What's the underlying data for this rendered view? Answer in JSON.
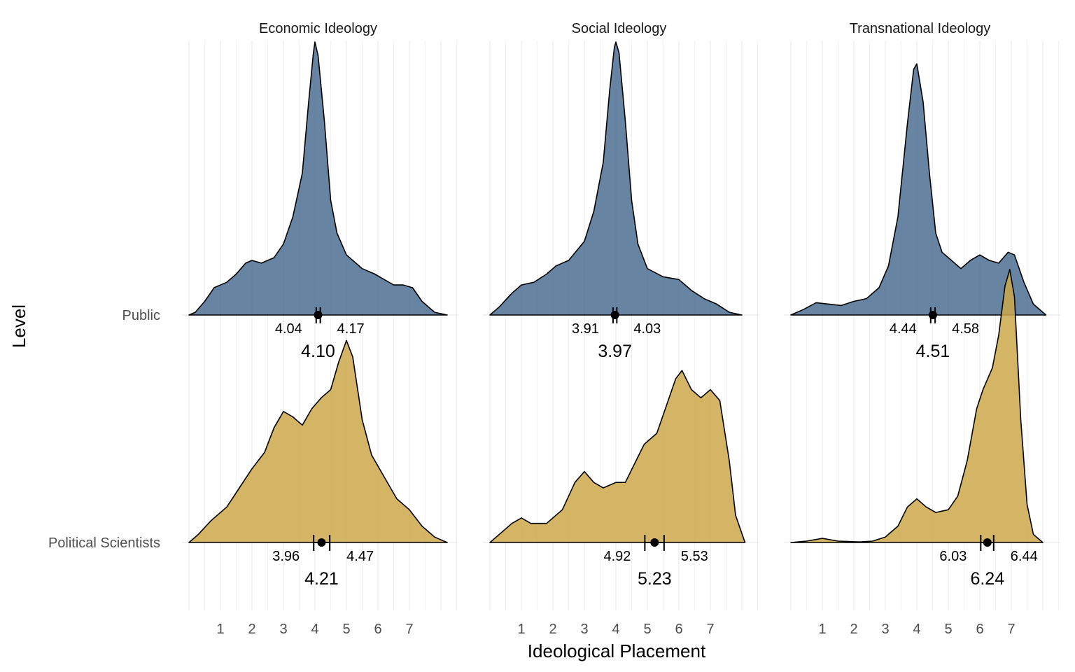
{
  "chart_data": {
    "type": "ridgeline-density",
    "xlabel": "Ideological Placement",
    "ylabel": "Level",
    "x_ticks": [
      "1",
      "2",
      "3",
      "4",
      "5",
      "6",
      "7"
    ],
    "xlim": [
      0,
      8.5
    ],
    "levels": [
      "Public",
      "Political Scientists"
    ],
    "colors": {
      "Public": "#4e6f93",
      "Political Scientists": "#cca84a"
    },
    "panels": [
      {
        "title": "Economic Ideology",
        "series": [
          {
            "level": "Public",
            "mean": 4.1,
            "ci_low": 4.04,
            "ci_high": 4.17,
            "mean_label": "4.10",
            "ci_low_label": "4.04",
            "ci_high_label": "4.17",
            "density": [
              [
                0,
                0
              ],
              [
                0.2,
                0.01
              ],
              [
                0.5,
                0.05
              ],
              [
                0.8,
                0.1
              ],
              [
                1.2,
                0.12
              ],
              [
                1.5,
                0.15
              ],
              [
                1.8,
                0.19
              ],
              [
                2.0,
                0.2
              ],
              [
                2.3,
                0.19
              ],
              [
                2.7,
                0.21
              ],
              [
                3.0,
                0.26
              ],
              [
                3.3,
                0.36
              ],
              [
                3.6,
                0.52
              ],
              [
                3.8,
                0.78
              ],
              [
                3.95,
                0.96
              ],
              [
                4.0,
                1.0
              ],
              [
                4.1,
                0.95
              ],
              [
                4.3,
                0.71
              ],
              [
                4.5,
                0.42
              ],
              [
                4.7,
                0.3
              ],
              [
                5.0,
                0.22
              ],
              [
                5.5,
                0.17
              ],
              [
                5.9,
                0.15
              ],
              [
                6.2,
                0.13
              ],
              [
                6.5,
                0.11
              ],
              [
                6.8,
                0.11
              ],
              [
                7.1,
                0.1
              ],
              [
                7.4,
                0.05
              ],
              [
                7.8,
                0.01
              ],
              [
                8.2,
                0
              ]
            ]
          },
          {
            "level": "Political Scientists",
            "mean": 4.21,
            "ci_low": 3.96,
            "ci_high": 4.47,
            "mean_label": "4.21",
            "ci_low_label": "3.96",
            "ci_high_label": "4.47",
            "density": [
              [
                0,
                0
              ],
              [
                0.3,
                0.03
              ],
              [
                0.7,
                0.08
              ],
              [
                1.2,
                0.13
              ],
              [
                1.6,
                0.2
              ],
              [
                2.0,
                0.27
              ],
              [
                2.4,
                0.33
              ],
              [
                2.7,
                0.42
              ],
              [
                3.0,
                0.48
              ],
              [
                3.3,
                0.46
              ],
              [
                3.6,
                0.43
              ],
              [
                3.9,
                0.49
              ],
              [
                4.2,
                0.53
              ],
              [
                4.5,
                0.56
              ],
              [
                4.75,
                0.66
              ],
              [
                5.0,
                0.74
              ],
              [
                5.2,
                0.68
              ],
              [
                5.5,
                0.45
              ],
              [
                5.8,
                0.32
              ],
              [
                6.2,
                0.24
              ],
              [
                6.6,
                0.16
              ],
              [
                7.0,
                0.12
              ],
              [
                7.4,
                0.06
              ],
              [
                7.8,
                0.02
              ],
              [
                8.2,
                0
              ]
            ]
          }
        ]
      },
      {
        "title": "Social Ideology",
        "series": [
          {
            "level": "Public",
            "mean": 3.97,
            "ci_low": 3.91,
            "ci_high": 4.03,
            "mean_label": "3.97",
            "ci_low_label": "3.91",
            "ci_high_label": "4.03",
            "density": [
              [
                0,
                0
              ],
              [
                0.3,
                0.03
              ],
              [
                0.7,
                0.08
              ],
              [
                1.0,
                0.11
              ],
              [
                1.4,
                0.12
              ],
              [
                1.8,
                0.15
              ],
              [
                2.1,
                0.18
              ],
              [
                2.5,
                0.2
              ],
              [
                3.0,
                0.27
              ],
              [
                3.3,
                0.38
              ],
              [
                3.6,
                0.56
              ],
              [
                3.8,
                0.82
              ],
              [
                3.95,
                0.98
              ],
              [
                4.0,
                1.0
              ],
              [
                4.1,
                0.96
              ],
              [
                4.3,
                0.71
              ],
              [
                4.5,
                0.42
              ],
              [
                4.7,
                0.26
              ],
              [
                5.0,
                0.17
              ],
              [
                5.5,
                0.14
              ],
              [
                6.0,
                0.13
              ],
              [
                6.4,
                0.09
              ],
              [
                6.8,
                0.06
              ],
              [
                7.2,
                0.04
              ],
              [
                7.6,
                0.01
              ],
              [
                8.0,
                0
              ]
            ]
          },
          {
            "level": "Political Scientists",
            "mean": 5.23,
            "ci_low": 4.92,
            "ci_high": 5.53,
            "mean_label": "5.23",
            "ci_low_label": "4.92",
            "ci_high_label": "5.53",
            "density": [
              [
                0,
                0
              ],
              [
                0.3,
                0.03
              ],
              [
                0.7,
                0.07
              ],
              [
                1.0,
                0.09
              ],
              [
                1.3,
                0.07
              ],
              [
                1.8,
                0.07
              ],
              [
                2.3,
                0.12
              ],
              [
                2.7,
                0.22
              ],
              [
                3.0,
                0.26
              ],
              [
                3.3,
                0.22
              ],
              [
                3.6,
                0.2
              ],
              [
                4.0,
                0.22
              ],
              [
                4.3,
                0.22
              ],
              [
                4.6,
                0.29
              ],
              [
                4.9,
                0.36
              ],
              [
                5.3,
                0.4
              ],
              [
                5.6,
                0.5
              ],
              [
                5.9,
                0.6
              ],
              [
                6.1,
                0.63
              ],
              [
                6.4,
                0.56
              ],
              [
                6.7,
                0.53
              ],
              [
                7.0,
                0.56
              ],
              [
                7.3,
                0.52
              ],
              [
                7.6,
                0.3
              ],
              [
                7.8,
                0.1
              ],
              [
                8.1,
                0
              ]
            ]
          }
        ]
      },
      {
        "title": "Transnational Ideology",
        "series": [
          {
            "level": "Public",
            "mean": 4.51,
            "ci_low": 4.44,
            "ci_high": 4.58,
            "mean_label": "4.51",
            "ci_low_label": "4.44",
            "ci_high_label": "4.58",
            "density": [
              [
                0,
                0
              ],
              [
                0.4,
                0.02
              ],
              [
                0.8,
                0.045
              ],
              [
                1.2,
                0.04
              ],
              [
                1.6,
                0.035
              ],
              [
                2.0,
                0.05
              ],
              [
                2.4,
                0.06
              ],
              [
                2.8,
                0.1
              ],
              [
                3.1,
                0.18
              ],
              [
                3.4,
                0.36
              ],
              [
                3.7,
                0.7
              ],
              [
                3.9,
                0.9
              ],
              [
                4.0,
                0.92
              ],
              [
                4.2,
                0.78
              ],
              [
                4.4,
                0.52
              ],
              [
                4.6,
                0.3
              ],
              [
                4.8,
                0.23
              ],
              [
                5.1,
                0.2
              ],
              [
                5.4,
                0.17
              ],
              [
                5.7,
                0.2
              ],
              [
                6.0,
                0.22
              ],
              [
                6.3,
                0.2
              ],
              [
                6.6,
                0.19
              ],
              [
                6.9,
                0.23
              ],
              [
                7.1,
                0.22
              ],
              [
                7.4,
                0.12
              ],
              [
                7.7,
                0.04
              ],
              [
                8.1,
                0
              ]
            ]
          },
          {
            "level": "Political Scientists",
            "mean": 6.24,
            "ci_low": 6.03,
            "ci_high": 6.44,
            "mean_label": "6.24",
            "ci_low_label": "6.03",
            "ci_high_label": "6.44",
            "density": [
              [
                0,
                0
              ],
              [
                0.5,
                0.005
              ],
              [
                1.0,
                0.015
              ],
              [
                1.5,
                0.005
              ],
              [
                2.2,
                0.002
              ],
              [
                2.6,
                0.005
              ],
              [
                3.0,
                0.02
              ],
              [
                3.4,
                0.06
              ],
              [
                3.7,
                0.13
              ],
              [
                4.0,
                0.16
              ],
              [
                4.3,
                0.13
              ],
              [
                4.6,
                0.11
              ],
              [
                5.0,
                0.12
              ],
              [
                5.3,
                0.17
              ],
              [
                5.6,
                0.3
              ],
              [
                5.9,
                0.49
              ],
              [
                6.1,
                0.56
              ],
              [
                6.4,
                0.64
              ],
              [
                6.6,
                0.76
              ],
              [
                6.8,
                0.94
              ],
              [
                6.95,
                1.0
              ],
              [
                7.1,
                0.9
              ],
              [
                7.3,
                0.45
              ],
              [
                7.5,
                0.14
              ],
              [
                7.7,
                0.03
              ],
              [
                8.0,
                0
              ]
            ]
          }
        ]
      }
    ]
  }
}
